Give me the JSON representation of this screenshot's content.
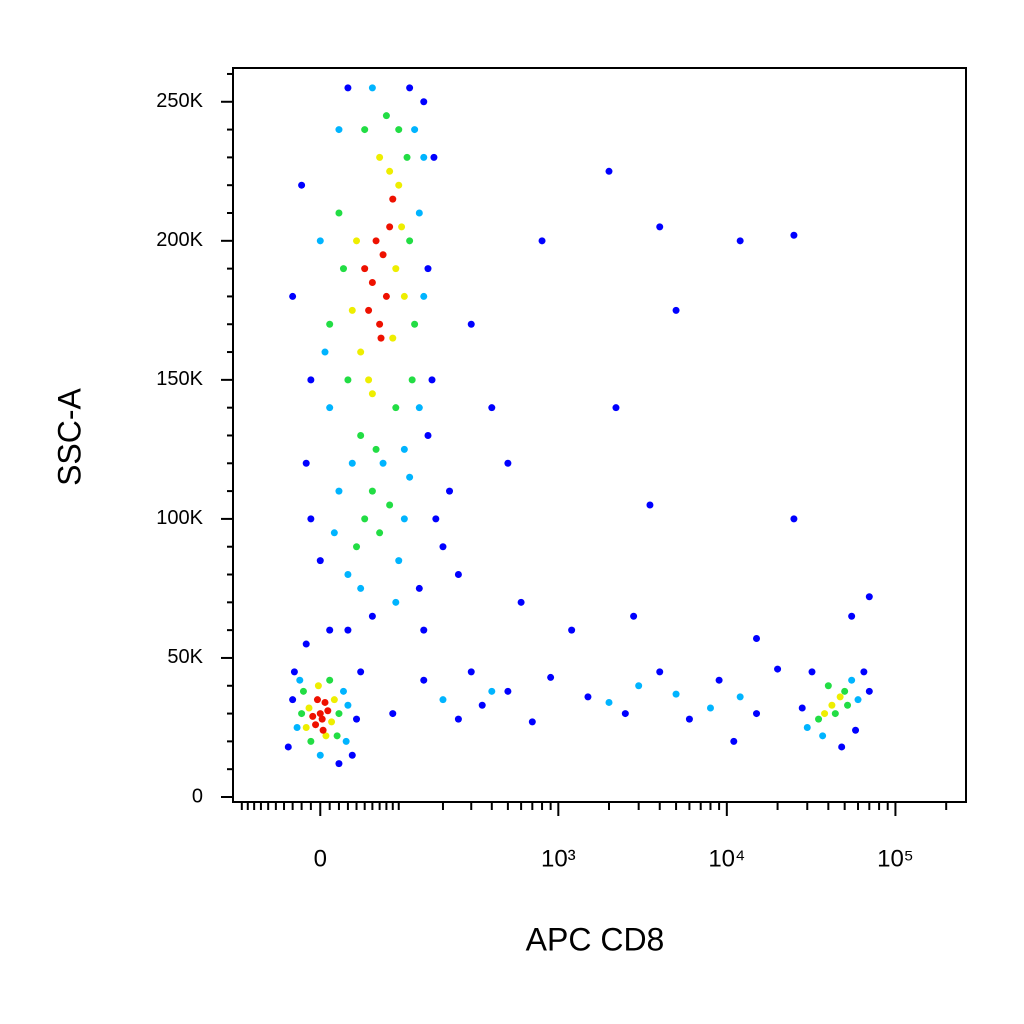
{
  "chart_data": {
    "type": "scatter",
    "xlabel": "APC CD8",
    "ylabel": "SSC-A",
    "xscale": "biexponential",
    "xlim": [
      -116,
      262144
    ],
    "ylim": [
      -1800,
      262144
    ],
    "xticks": [
      0,
      {
        "value": 1000,
        "label": "10³"
      },
      {
        "value": 10000,
        "label": "10⁴"
      },
      {
        "value": 100000,
        "label": "10⁵"
      }
    ],
    "xminorticks": [
      -100,
      -90,
      -80,
      -70,
      -60,
      -50,
      -40,
      -30,
      -20,
      -10,
      10,
      20,
      30,
      40,
      50,
      60,
      70,
      80,
      90,
      100,
      200,
      300,
      400,
      500,
      600,
      700,
      800,
      900,
      2000,
      3000,
      4000,
      5000,
      6000,
      7000,
      8000,
      9000,
      20000,
      30000,
      40000,
      50000,
      60000,
      70000,
      80000,
      90000,
      200000
    ],
    "yticks": [
      0,
      {
        "value": 50000,
        "label": "50K"
      },
      {
        "value": 100000,
        "label": "100K"
      },
      {
        "value": 150000,
        "label": "150K"
      },
      {
        "value": 200000,
        "label": "200K"
      },
      {
        "value": 250000,
        "label": "250K"
      }
    ],
    "yminorticks": [
      10000,
      20000,
      30000,
      40000,
      60000,
      70000,
      80000,
      90000,
      110000,
      120000,
      130000,
      140000,
      160000,
      170000,
      180000,
      190000,
      210000,
      220000,
      230000,
      240000,
      260000
    ],
    "series": [
      {
        "color": "#0000ff",
        "x": [
          -10,
          160,
          170,
          -20,
          150,
          30,
          -30,
          175,
          120,
          -15,
          160,
          0,
          140,
          180,
          -10,
          200,
          60,
          150,
          220,
          30,
          -30,
          40,
          -35,
          35,
          -28,
          45,
          20,
          -15,
          10,
          90,
          150,
          250,
          300,
          350,
          500,
          700,
          900,
          1500,
          2500,
          4000,
          6000,
          9000,
          15000,
          20000,
          11000,
          28000,
          65000,
          48000,
          70000,
          32000,
          58000,
          400,
          800,
          2000,
          4000,
          12000,
          25000,
          250,
          600,
          3500,
          25000,
          5000,
          2200,
          1200,
          2800,
          55000,
          70000,
          15000,
          300,
          500
        ],
        "y": [
          150000,
          190000,
          150000,
          220000,
          250000,
          255000,
          180000,
          230000,
          255000,
          120000,
          130000,
          85000,
          75000,
          100000,
          100000,
          90000,
          65000,
          60000,
          110000,
          60000,
          35000,
          28000,
          18000,
          15000,
          45000,
          45000,
          12000,
          55000,
          60000,
          30000,
          42000,
          28000,
          45000,
          33000,
          38000,
          27000,
          43000,
          36000,
          30000,
          45000,
          28000,
          42000,
          30000,
          46000,
          20000,
          32000,
          45000,
          18000,
          38000,
          45000,
          24000,
          140000,
          200000,
          225000,
          205000,
          200000,
          202000,
          80000,
          70000,
          105000,
          100000,
          175000,
          140000,
          60000,
          65000,
          65000,
          72000,
          57000,
          170000,
          120000
        ]
      },
      {
        "color": "#00b4ff",
        "x": [
          5,
          140,
          130,
          20,
          150,
          0,
          35,
          110,
          140,
          60,
          10,
          150,
          30,
          100,
          20,
          110,
          45,
          75,
          95,
          15,
          120,
          -25,
          25,
          -22,
          28,
          0,
          30,
          200,
          400,
          2000,
          5000,
          8000,
          12000,
          3000,
          30000,
          55000,
          37000,
          60000
        ],
        "y": [
          160000,
          210000,
          240000,
          240000,
          180000,
          200000,
          120000,
          125000,
          140000,
          255000,
          140000,
          230000,
          80000,
          85000,
          110000,
          100000,
          75000,
          120000,
          70000,
          95000,
          115000,
          25000,
          38000,
          42000,
          20000,
          15000,
          33000,
          35000,
          38000,
          34000,
          37000,
          32000,
          36000,
          40000,
          25000,
          42000,
          22000,
          35000
        ]
      },
      {
        "color": "#22dd44",
        "x": [
          30,
          120,
          100,
          50,
          25,
          130,
          45,
          95,
          20,
          115,
          65,
          80,
          10,
          125,
          50,
          70,
          40,
          85,
          60,
          -20,
          20,
          -10,
          10,
          -18,
          18,
          35000,
          50000,
          44000,
          40000,
          52000
        ],
        "y": [
          150000,
          200000,
          240000,
          240000,
          190000,
          170000,
          130000,
          140000,
          210000,
          230000,
          125000,
          245000,
          170000,
          150000,
          100000,
          95000,
          90000,
          105000,
          110000,
          30000,
          30000,
          20000,
          42000,
          38000,
          22000,
          28000,
          38000,
          30000,
          40000,
          33000
        ]
      },
      {
        "color": "#eeee00",
        "x": [
          45,
          95,
          100,
          40,
          110,
          55,
          85,
          35,
          70,
          105,
          60,
          90,
          -12,
          12,
          -2,
          6,
          15,
          -15,
          42000,
          47000,
          38000
        ],
        "y": [
          160000,
          190000,
          220000,
          200000,
          180000,
          150000,
          225000,
          175000,
          230000,
          205000,
          145000,
          165000,
          32000,
          27000,
          40000,
          22000,
          35000,
          25000,
          33000,
          36000,
          30000
        ]
      },
      {
        "color": "#ee1100",
        "x": [
          60,
          75,
          55,
          85,
          70,
          65,
          80,
          50,
          90,
          72,
          0,
          -5,
          5,
          2,
          -3,
          8,
          -8,
          3
        ],
        "y": [
          185000,
          195000,
          175000,
          205000,
          170000,
          200000,
          180000,
          190000,
          215000,
          165000,
          30000,
          26000,
          34000,
          28000,
          35000,
          31000,
          29000,
          24000
        ]
      }
    ]
  }
}
